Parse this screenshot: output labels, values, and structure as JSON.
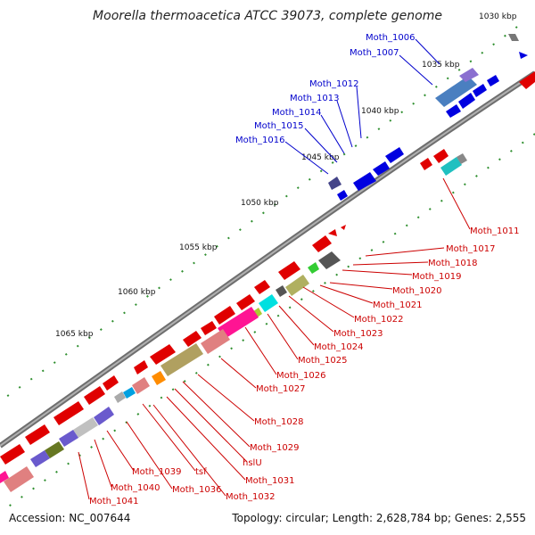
{
  "title": "Moorella thermoacetica ATCC 39073, complete genome",
  "footer": {
    "accession": "Accession: NC_007644",
    "summary": "Topology: circular; Length: 2,628,784 bp; Genes: 2,555"
  },
  "ruler_labels": [
    "1030 kbp",
    "1035 kbp",
    "1040 kbp",
    "1045 kbp",
    "1050 kbp",
    "1055 kbp",
    "1060 kbp",
    "1065 kbp"
  ],
  "upper_strand_labels": [
    "Moth_1006",
    "Moth_1007",
    "Moth_1012",
    "Moth_1013",
    "Moth_1014",
    "Moth_1015",
    "Moth_1016"
  ],
  "lower_strand_labels": [
    "Moth_1011",
    "Moth_1017",
    "Moth_1018",
    "Moth_1019",
    "Moth_1020",
    "Moth_1021",
    "Moth_1022",
    "Moth_1023",
    "Moth_1024",
    "Moth_1025",
    "Moth_1026",
    "Moth_1027",
    "Moth_1028",
    "Moth_1029",
    "hslU",
    "Moth_1031",
    "Moth_1032",
    "tsf",
    "Moth_1036",
    "Moth_1039",
    "Moth_1040",
    "Moth_1041"
  ],
  "colors": {
    "backbone": "#8a8a8a",
    "upper_label": "#0000cc",
    "lower_label": "#cc0000",
    "tick": "#2f8f2f",
    "gene_red": "#e00000",
    "gene_blue": "#0000e0"
  }
}
